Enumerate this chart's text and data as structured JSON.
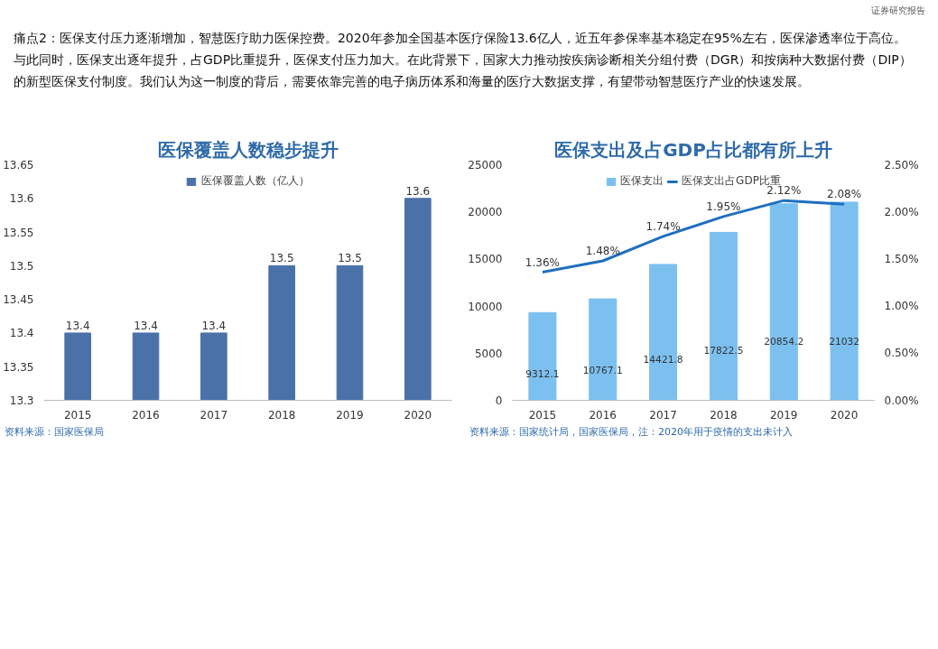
{
  "chart_data": [
    {
      "type": "bar",
      "title": "医保覆盖人数稳步提升",
      "categories": [
        "2015",
        "2016",
        "2017",
        "2018",
        "2019",
        "2020"
      ],
      "series": [
        {
          "name": "医保覆盖人数（亿人）",
          "color": "#4a72a8",
          "values": [
            13.4,
            13.4,
            13.4,
            13.5,
            13.5,
            13.6
          ]
        }
      ],
      "ylim": [
        13.3,
        13.65
      ],
      "yticks": [
        13.3,
        13.35,
        13.4,
        13.45,
        13.5,
        13.55,
        13.6,
        13.65
      ],
      "data_labels": true,
      "legend": "top",
      "annotations": [
        "证券研究报告",
        "痛点2：医保支付压力逐渐增加，智慧医疗助力医保控费。2020年参加全国基本医疗保险13.6亿人，近五年参保率基本稳定在95%左右，医保渗透率位于高位。与此同时，医保支出逐年提升，占GDP比重提升，医保支付压力加大。在此背景下，国家大力推动按疾病诊断相关分组付费（DGR）和按病种大数据付费（DIP）的新型医保支付制度。我们认为这一制度的背后，需要依靠完善的电子病历体系和海量的医疗大数据支撑，有望带动智慧医疗产业的快速发展。",
        "资料来源：国家医保局"
      ]
    },
    {
      "type": "bar",
      "title": "医保支出及占GDP占比都有所上升",
      "categories": [
        "2015",
        "2016",
        "2017",
        "2018",
        "2019",
        "2020"
      ],
      "series": [
        {
          "name": "医保支出",
          "color": "#7cc0f0",
          "values": [
            9312.1,
            10767.1,
            14421.8,
            17822.5,
            20854.2,
            21032
          ],
          "value_labels": [
            "9312.1",
            "10767.1",
            "14421.8",
            "17822.5",
            "20854.2",
            "21032"
          ]
        },
        {
          "name": "医保支出占GDP比重",
          "type": "line",
          "axis": "y2",
          "color": "#1f6fbf",
          "values": [
            1.36,
            1.48,
            1.74,
            1.95,
            2.12,
            2.08
          ],
          "value_labels": [
            "1.36%",
            "1.48%",
            "1.74%",
            "1.95%",
            "2.12%",
            "2.08%"
          ]
        }
      ],
      "ylim": [
        0,
        25000
      ],
      "yticks": [
        0,
        5000,
        10000,
        15000,
        20000,
        25000
      ],
      "y2lim": [
        0,
        2.5
      ],
      "y2ticks": [
        {
          "value": 0,
          "label": "0.00%"
        },
        {
          "value": 0.5,
          "label": "0.50%"
        },
        {
          "value": 1,
          "label": "1.00%"
        },
        {
          "value": 1.5,
          "label": "1.50%"
        },
        {
          "value": 2,
          "label": "2.00%"
        },
        {
          "value": 2.5,
          "label": "2.50%"
        }
      ],
      "legend": "top",
      "annotations": [
        "资料来源：国家统计局，国家医保局，注：2020年用于疫情的支出未计入"
      ]
    }
  ]
}
